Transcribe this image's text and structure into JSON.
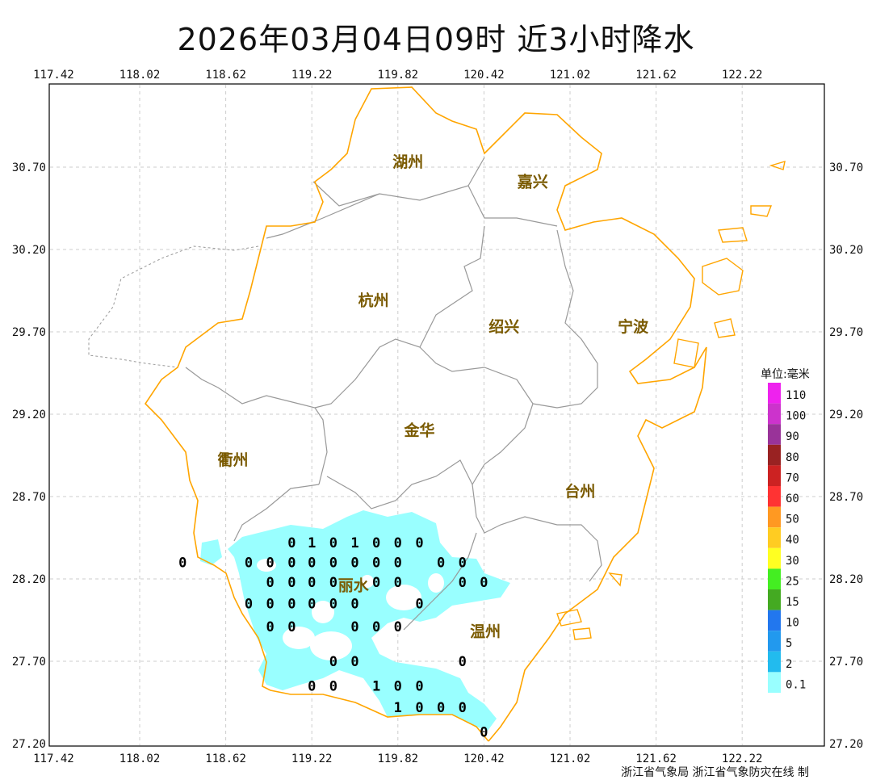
{
  "title": "2026年03月04日09时  近3小时降水",
  "footer": "浙江省气象局 浙江省气象防灾在线 制",
  "axes": {
    "lon_ticks": [
      "117.42",
      "118.02",
      "118.62",
      "119.22",
      "119.82",
      "120.42",
      "121.02",
      "121.62",
      "122.22"
    ],
    "lat_ticks": [
      "30.70",
      "30.20",
      "29.70",
      "29.20",
      "28.70",
      "28.20",
      "27.70",
      "27.20"
    ]
  },
  "cities": [
    {
      "name": "湖州",
      "lon": 119.89,
      "lat": 30.7
    },
    {
      "name": "嘉兴",
      "lon": 120.76,
      "lat": 30.58
    },
    {
      "name": "杭州",
      "lon": 119.65,
      "lat": 29.86
    },
    {
      "name": "绍兴",
      "lon": 120.56,
      "lat": 29.7
    },
    {
      "name": "宁波",
      "lon": 121.46,
      "lat": 29.7
    },
    {
      "name": "金华",
      "lon": 119.97,
      "lat": 29.07
    },
    {
      "name": "衢州",
      "lon": 118.67,
      "lat": 28.89
    },
    {
      "name": "台州",
      "lon": 121.09,
      "lat": 28.7
    },
    {
      "name": "丽水",
      "lon": 119.51,
      "lat": 28.13
    },
    {
      "name": "温州",
      "lon": 120.43,
      "lat": 27.85
    }
  ],
  "station_values": [
    {
      "v": "0",
      "lon": 119.08,
      "lat": 28.42
    },
    {
      "v": "1",
      "lon": 119.22,
      "lat": 28.42
    },
    {
      "v": "0",
      "lon": 119.37,
      "lat": 28.42
    },
    {
      "v": "1",
      "lon": 119.52,
      "lat": 28.42
    },
    {
      "v": "0",
      "lon": 119.67,
      "lat": 28.42
    },
    {
      "v": "0",
      "lon": 119.82,
      "lat": 28.42
    },
    {
      "v": "0",
      "lon": 119.97,
      "lat": 28.42
    },
    {
      "v": "0",
      "lon": 118.32,
      "lat": 28.3
    },
    {
      "v": "0",
      "lon": 118.78,
      "lat": 28.3
    },
    {
      "v": "0",
      "lon": 118.93,
      "lat": 28.3
    },
    {
      "v": "0",
      "lon": 119.08,
      "lat": 28.3
    },
    {
      "v": "0",
      "lon": 119.22,
      "lat": 28.3
    },
    {
      "v": "0",
      "lon": 119.37,
      "lat": 28.3
    },
    {
      "v": "0",
      "lon": 119.52,
      "lat": 28.3
    },
    {
      "v": "0",
      "lon": 119.67,
      "lat": 28.3
    },
    {
      "v": "0",
      "lon": 119.82,
      "lat": 28.3
    },
    {
      "v": "0",
      "lon": 120.12,
      "lat": 28.3
    },
    {
      "v": "0",
      "lon": 120.27,
      "lat": 28.3
    },
    {
      "v": "0",
      "lon": 118.93,
      "lat": 28.18
    },
    {
      "v": "0",
      "lon": 119.08,
      "lat": 28.18
    },
    {
      "v": "0",
      "lon": 119.22,
      "lat": 28.18
    },
    {
      "v": "0",
      "lon": 119.37,
      "lat": 28.18
    },
    {
      "v": "0",
      "lon": 119.67,
      "lat": 28.18
    },
    {
      "v": "0",
      "lon": 119.82,
      "lat": 28.18
    },
    {
      "v": "0",
      "lon": 120.27,
      "lat": 28.18
    },
    {
      "v": "0",
      "lon": 120.42,
      "lat": 28.18
    },
    {
      "v": "0",
      "lon": 118.78,
      "lat": 28.05
    },
    {
      "v": "0",
      "lon": 118.93,
      "lat": 28.05
    },
    {
      "v": "0",
      "lon": 119.08,
      "lat": 28.05
    },
    {
      "v": "0",
      "lon": 119.22,
      "lat": 28.05
    },
    {
      "v": "0",
      "lon": 119.37,
      "lat": 28.05
    },
    {
      "v": "0",
      "lon": 119.52,
      "lat": 28.05
    },
    {
      "v": "0",
      "lon": 119.97,
      "lat": 28.05
    },
    {
      "v": "0",
      "lon": 118.93,
      "lat": 27.91
    },
    {
      "v": "0",
      "lon": 119.08,
      "lat": 27.91
    },
    {
      "v": "0",
      "lon": 119.52,
      "lat": 27.91
    },
    {
      "v": "0",
      "lon": 119.67,
      "lat": 27.91
    },
    {
      "v": "0",
      "lon": 119.82,
      "lat": 27.91
    },
    {
      "v": "0",
      "lon": 119.37,
      "lat": 27.7
    },
    {
      "v": "0",
      "lon": 119.52,
      "lat": 27.7
    },
    {
      "v": "0",
      "lon": 120.27,
      "lat": 27.7
    },
    {
      "v": "0",
      "lon": 119.22,
      "lat": 27.55
    },
    {
      "v": "0",
      "lon": 119.37,
      "lat": 27.55
    },
    {
      "v": "1",
      "lon": 119.67,
      "lat": 27.55
    },
    {
      "v": "0",
      "lon": 119.82,
      "lat": 27.55
    },
    {
      "v": "0",
      "lon": 119.97,
      "lat": 27.55
    },
    {
      "v": "1",
      "lon": 119.82,
      "lat": 27.42
    },
    {
      "v": "0",
      "lon": 119.97,
      "lat": 27.42
    },
    {
      "v": "0",
      "lon": 120.12,
      "lat": 27.42
    },
    {
      "v": "0",
      "lon": 120.27,
      "lat": 27.42
    },
    {
      "v": "0",
      "lon": 120.42,
      "lat": 27.27
    }
  ],
  "legend": {
    "title": "单位:毫米",
    "items": [
      {
        "label": "110",
        "color": "#ee22ee"
      },
      {
        "label": "100",
        "color": "#cc33cc"
      },
      {
        "label": "90",
        "color": "#993399"
      },
      {
        "label": "80",
        "color": "#992222"
      },
      {
        "label": "70",
        "color": "#cc2222"
      },
      {
        "label": "60",
        "color": "#ff3333"
      },
      {
        "label": "50",
        "color": "#ff9922"
      },
      {
        "label": "40",
        "color": "#ffcc22"
      },
      {
        "label": "30",
        "color": "#ffff22"
      },
      {
        "label": "25",
        "color": "#44ee22"
      },
      {
        "label": "15",
        "color": "#44aa22"
      },
      {
        "label": "10",
        "color": "#2277ee"
      },
      {
        "label": "5",
        "color": "#2299ee"
      },
      {
        "label": "2",
        "color": "#22bbee"
      },
      {
        "label": "0.1",
        "color": "#99ffff"
      }
    ]
  },
  "colors": {
    "coast": "#ffa500",
    "boundary": "#999999",
    "rain": "#99ffff",
    "grid": "#cccccc"
  }
}
